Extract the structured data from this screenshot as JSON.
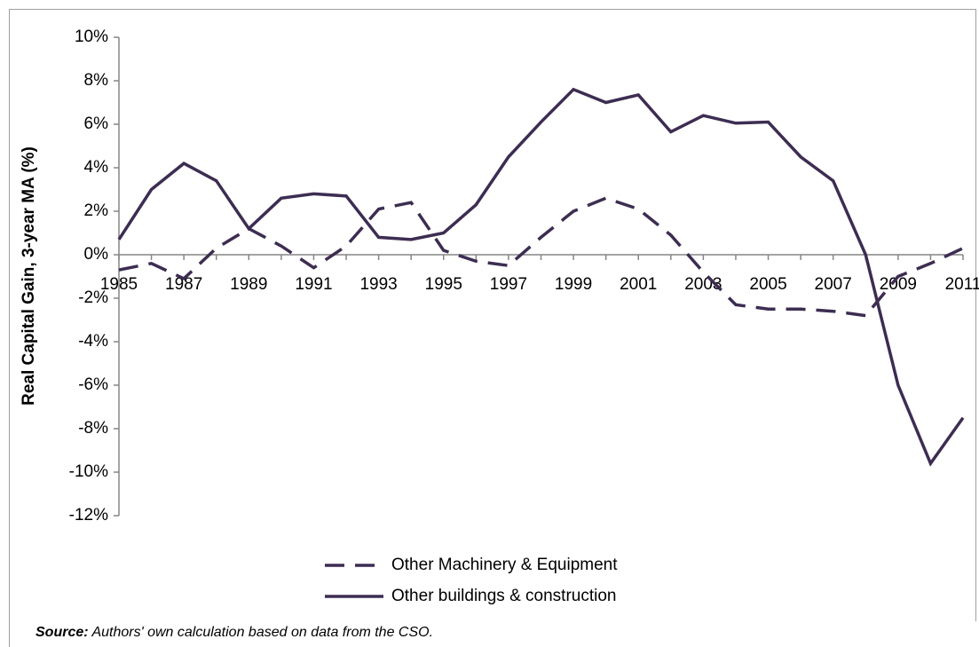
{
  "chart_data": {
    "type": "line",
    "y_label": "Real Capital Gain, 3-year MA (%)",
    "x": [
      1985,
      1986,
      1987,
      1988,
      1989,
      1990,
      1991,
      1992,
      1993,
      1994,
      1995,
      1996,
      1997,
      1998,
      1999,
      2000,
      2001,
      2002,
      2003,
      2004,
      2005,
      2006,
      2007,
      2008,
      2009,
      2010,
      2011
    ],
    "xlim": [
      1985,
      2011
    ],
    "xticks": [
      1985,
      1987,
      1989,
      1991,
      1993,
      1995,
      1997,
      1999,
      2001,
      2003,
      2005,
      2007,
      2009,
      2011
    ],
    "ylim": [
      -12,
      10
    ],
    "yticks": [
      {
        "value": -12,
        "label": "-12%"
      },
      {
        "value": -10,
        "label": "-10%"
      },
      {
        "value": -8,
        "label": "-8%"
      },
      {
        "value": -6,
        "label": "-6%"
      },
      {
        "value": -4,
        "label": "-4%"
      },
      {
        "value": -2,
        "label": "-2%"
      },
      {
        "value": 0,
        "label": "0%"
      },
      {
        "value": 2,
        "label": "2%"
      },
      {
        "value": 4,
        "label": "4%"
      },
      {
        "value": 6,
        "label": "6%"
      },
      {
        "value": 8,
        "label": "8%"
      },
      {
        "value": 10,
        "label": "10%"
      }
    ],
    "grid": false,
    "series": [
      {
        "name": "Other Machinery & Equipment",
        "color": "#3d2d52",
        "line_style": "dashed",
        "values": [
          -0.7,
          -0.4,
          -1.1,
          0.3,
          1.2,
          0.4,
          -0.6,
          0.4,
          2.1,
          2.4,
          0.2,
          -0.3,
          -0.5,
          0.8,
          2.0,
          2.6,
          2.1,
          0.9,
          -0.8,
          -2.3,
          -2.5,
          -2.5,
          -2.6,
          -2.8,
          -1.0,
          -0.4,
          0.3
        ]
      },
      {
        "name": "Other buildings & construction",
        "color": "#3d2d52",
        "line_style": "solid",
        "values": [
          0.7,
          3.0,
          4.2,
          3.4,
          1.2,
          2.6,
          2.8,
          2.7,
          0.8,
          0.7,
          1.0,
          2.3,
          4.5,
          6.1,
          7.6,
          7.0,
          7.35,
          5.65,
          6.4,
          6.05,
          6.1,
          4.5,
          3.4,
          0.0,
          -6.0,
          -9.6,
          -7.5
        ]
      }
    ],
    "source_label": "Source:",
    "source": "Authors' own calculation based on data from the CSO."
  }
}
